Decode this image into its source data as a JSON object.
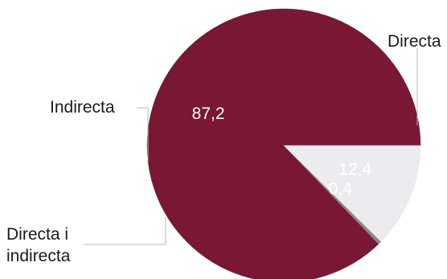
{
  "chart_data": {
    "type": "pie",
    "title": "",
    "unit": "%",
    "slices": [
      {
        "label": "Directa",
        "value": 87.2,
        "value_text": "87,2",
        "color": "#7a1735"
      },
      {
        "label": "Directa i indirecta",
        "label_lines": [
          "Directa i",
          "indirecta"
        ],
        "value": 0.4,
        "value_text": "0,4",
        "color": "#8a8a8a"
      },
      {
        "label": "Indirecta",
        "value": 12.4,
        "value_text": "12,4",
        "color": "#ececee"
      }
    ],
    "start_angle_deg": 0,
    "direction": "counterclockwise",
    "label_placement": "outside",
    "legend": "none"
  }
}
